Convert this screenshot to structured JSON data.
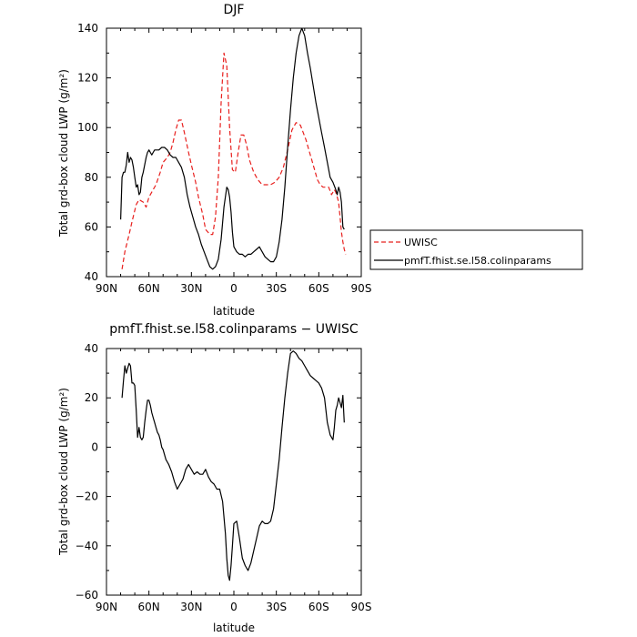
{
  "chart_data": [
    {
      "type": "line",
      "title": "DJF",
      "xlabel": "latitude",
      "ylabel": "Total grd-box cloud LWP (g/m²)",
      "xlim": [
        90,
        -90
      ],
      "ylim": [
        40,
        140
      ],
      "xticks": [
        90,
        60,
        30,
        0,
        -30,
        -60,
        -90
      ],
      "xtick_labels": [
        "90N",
        "60N",
        "30N",
        "0",
        "30S",
        "60S",
        "90S"
      ],
      "yticks": [
        40,
        60,
        80,
        100,
        120,
        140
      ],
      "ytick_labels": [
        "40",
        "60",
        "80",
        "100",
        "120",
        "140"
      ],
      "legend": "outside-right",
      "series": [
        {
          "name": "UWISC",
          "color": "#e8201e",
          "dash": "dashed",
          "x": [
            79,
            77,
            74,
            72,
            69,
            67,
            64,
            62,
            60,
            57,
            55,
            52,
            50,
            47,
            45,
            43,
            41,
            39,
            37,
            35,
            32,
            30,
            27,
            25,
            22,
            20,
            17,
            15,
            13,
            11,
            9,
            7,
            5,
            3,
            1,
            -1,
            -3,
            -5,
            -7,
            -9,
            -11,
            -14,
            -17,
            -20,
            -23,
            -26,
            -29,
            -32,
            -35,
            -38,
            -41,
            -44,
            -47,
            -49,
            -51,
            -53,
            -55,
            -57,
            -59,
            -61,
            -63,
            -65,
            -67,
            -69,
            -71,
            -72,
            -73,
            -74,
            -75,
            -76,
            -77,
            -78,
            -79
          ],
          "y": [
            43,
            50,
            57,
            62,
            69,
            71,
            70,
            68,
            72,
            75,
            77,
            82,
            86,
            88,
            90,
            94,
            99,
            103,
            103,
            98,
            90,
            85,
            78,
            72,
            65,
            59,
            57,
            57,
            64,
            80,
            110,
            130,
            125,
            100,
            83,
            82,
            90,
            97,
            97,
            93,
            87,
            82,
            79,
            77,
            77,
            77,
            78,
            80,
            84,
            91,
            99,
            102,
            101,
            98,
            95,
            91,
            87,
            83,
            79,
            77,
            76,
            76,
            76,
            73,
            75,
            74,
            72,
            70,
            64,
            58,
            54,
            51,
            49
          ]
        },
        {
          "name": "pmfT.fhist.se.l58.colinparams",
          "color": "#000000",
          "dash": "solid",
          "x": [
            80,
            79,
            78,
            77,
            76,
            75,
            74,
            73,
            72,
            71,
            70,
            69,
            68,
            67,
            66,
            65,
            64,
            63,
            62,
            61,
            60,
            59,
            58,
            57,
            56,
            55,
            53,
            51,
            49,
            47,
            45,
            43,
            41,
            39,
            37,
            35,
            33,
            31,
            29,
            27,
            25,
            23,
            21,
            19,
            17,
            15,
            13,
            11,
            9,
            7,
            5,
            4,
            3,
            2,
            1,
            0,
            -2,
            -4,
            -6,
            -8,
            -10,
            -12,
            -14,
            -16,
            -18,
            -20,
            -22,
            -24,
            -26,
            -28,
            -30,
            -32,
            -34,
            -36,
            -38,
            -40,
            -42,
            -44,
            -46,
            -48,
            -50,
            -52,
            -54,
            -56,
            -58,
            -60,
            -62,
            -64,
            -66,
            -68,
            -70,
            -72,
            -73,
            -74,
            -75,
            -76,
            -77,
            -78
          ],
          "y": [
            63,
            80,
            82,
            82,
            85,
            90,
            86,
            88,
            87,
            84,
            80,
            76,
            77,
            73,
            74,
            80,
            82,
            85,
            88,
            90,
            91,
            90,
            89,
            90,
            91,
            91,
            91,
            92,
            92,
            91,
            89,
            88,
            88,
            86,
            84,
            80,
            73,
            68,
            64,
            60,
            57,
            53,
            50,
            47,
            44,
            43,
            44,
            47,
            55,
            68,
            76,
            75,
            72,
            66,
            58,
            52,
            50,
            49,
            49,
            48,
            49,
            49,
            50,
            51,
            52,
            50,
            48,
            47,
            46,
            46,
            48,
            54,
            63,
            76,
            92,
            107,
            120,
            130,
            137,
            140,
            137,
            130,
            124,
            117,
            110,
            104,
            98,
            92,
            86,
            80,
            78,
            75,
            73,
            76,
            74,
            70,
            60,
            59
          ]
        }
      ]
    },
    {
      "type": "line",
      "title": "pmfT.fhist.se.l58.colinparams − UWISC",
      "xlabel": "latitude",
      "ylabel": "Total grd-box cloud LWP (g/m²)",
      "xlim": [
        90,
        -90
      ],
      "ylim": [
        -60,
        40
      ],
      "xticks": [
        90,
        60,
        30,
        0,
        -30,
        -60,
        -90
      ],
      "xtick_labels": [
        "90N",
        "60N",
        "30N",
        "0",
        "30S",
        "60S",
        "90S"
      ],
      "yticks": [
        -60,
        -40,
        -20,
        0,
        20,
        40
      ],
      "ytick_labels": [
        "−60",
        "−40",
        "−20",
        "0",
        "20",
        "40"
      ],
      "series": [
        {
          "color": "#000000",
          "dash": "solid",
          "x": [
            79,
            78,
            77,
            76,
            75,
            74,
            73,
            72,
            71,
            70,
            69,
            68,
            67,
            66,
            65,
            64,
            63,
            62,
            61,
            60,
            59,
            58,
            57,
            56,
            55,
            54,
            53,
            52,
            51,
            50,
            48,
            46,
            44,
            42,
            40,
            38,
            36,
            34,
            32,
            30,
            28,
            26,
            24,
            22,
            20,
            18,
            16,
            14,
            12,
            10,
            8,
            6,
            5,
            4,
            3,
            2,
            1,
            0,
            -2,
            -4,
            -6,
            -8,
            -10,
            -12,
            -14,
            -16,
            -18,
            -20,
            -22,
            -24,
            -26,
            -28,
            -30,
            -32,
            -34,
            -36,
            -38,
            -40,
            -42,
            -44,
            -46,
            -48,
            -50,
            -52,
            -54,
            -56,
            -58,
            -60,
            -62,
            -64,
            -66,
            -68,
            -70,
            -71,
            -72,
            -73,
            -74,
            -75,
            -76,
            -77,
            -78
          ],
          "y": [
            20,
            27,
            33,
            30,
            32,
            34,
            33,
            26,
            26,
            25,
            15,
            4,
            8,
            4,
            3,
            4,
            10,
            15,
            19,
            19,
            17,
            14,
            12,
            10,
            8,
            6,
            5,
            3,
            0,
            -1,
            -5,
            -7,
            -10,
            -14,
            -17,
            -15,
            -13,
            -9,
            -7,
            -9,
            -11,
            -10,
            -11,
            -11,
            -9,
            -12,
            -14,
            -15,
            -17,
            -17,
            -22,
            -35,
            -45,
            -52,
            -54,
            -48,
            -40,
            -31,
            -30,
            -37,
            -45,
            -48,
            -50,
            -47,
            -42,
            -37,
            -32,
            -30,
            -31,
            -31,
            -30,
            -25,
            -15,
            -5,
            8,
            20,
            30,
            38,
            39,
            38,
            36,
            35,
            33,
            31,
            29,
            28,
            27,
            26,
            24,
            20,
            10,
            5,
            3,
            8,
            15,
            17,
            20,
            18,
            16,
            21,
            10
          ]
        }
      ]
    }
  ]
}
